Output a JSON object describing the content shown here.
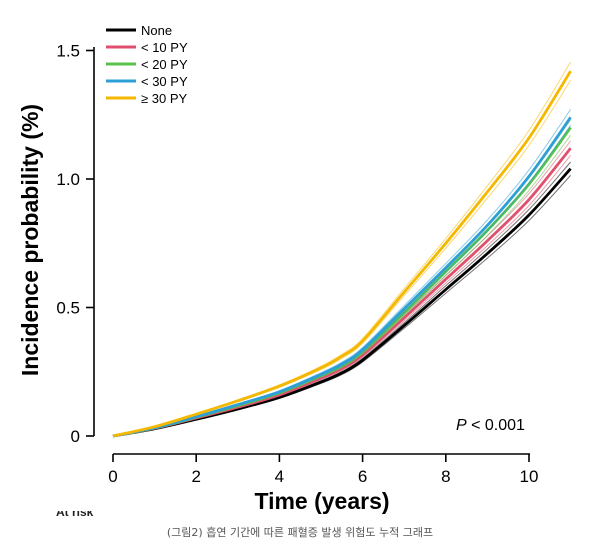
{
  "chart_data": {
    "type": "line",
    "title": "",
    "xlabel": "Time (years)",
    "ylabel": "Incidence probability (%)",
    "xlim": [
      0,
      11
    ],
    "ylim": [
      0,
      1.5
    ],
    "xticks": [
      "0",
      "2",
      "4",
      "6",
      "8",
      "10"
    ],
    "yticks": [
      "0",
      "0.5",
      "1.0",
      "1.5"
    ],
    "grid": false,
    "legend_position": "top-left",
    "confidence_bands": true,
    "annotation": {
      "prefix": "P",
      "text": " < 0.001"
    },
    "series": [
      {
        "name": "None",
        "color": "#000000",
        "x": [
          0,
          1,
          2,
          3,
          4,
          5,
          5.5,
          6,
          7,
          8,
          9,
          10,
          11
        ],
        "y": [
          0,
          0.028,
          0.065,
          0.105,
          0.15,
          0.21,
          0.245,
          0.295,
          0.43,
          0.57,
          0.71,
          0.86,
          1.04
        ]
      },
      {
        "name": "< 10 PY",
        "color": "#e0506e",
        "x": [
          0,
          1,
          2,
          3,
          4,
          5,
          5.5,
          6,
          7,
          8,
          9,
          10,
          11
        ],
        "y": [
          0,
          0.03,
          0.07,
          0.112,
          0.16,
          0.225,
          0.262,
          0.315,
          0.46,
          0.61,
          0.76,
          0.92,
          1.12
        ]
      },
      {
        "name": "< 20 PY",
        "color": "#57c24a",
        "x": [
          0,
          1,
          2,
          3,
          4,
          5,
          5.5,
          6,
          7,
          8,
          9,
          10,
          11
        ],
        "y": [
          0,
          0.031,
          0.073,
          0.118,
          0.168,
          0.235,
          0.273,
          0.328,
          0.48,
          0.64,
          0.8,
          0.98,
          1.2
        ]
      },
      {
        "name": "< 30 PY",
        "color": "#2e9fd6",
        "x": [
          0,
          1,
          2,
          3,
          4,
          5,
          5.5,
          6,
          7,
          8,
          9,
          10,
          11
        ],
        "y": [
          0,
          0.032,
          0.075,
          0.122,
          0.172,
          0.24,
          0.28,
          0.336,
          0.495,
          0.655,
          0.82,
          1.01,
          1.24
        ]
      },
      {
        "name": "≥ 30 PY",
        "color": "#f5b800",
        "x": [
          0,
          1,
          2,
          3,
          4,
          5,
          5.5,
          6,
          7,
          8,
          9,
          10,
          11
        ],
        "y": [
          0,
          0.036,
          0.085,
          0.137,
          0.194,
          0.265,
          0.31,
          0.37,
          0.56,
          0.75,
          0.95,
          1.16,
          1.42
        ]
      }
    ]
  },
  "caption": "(그림2) 흡연 기간에 따른 패혈증 발생 위험도 누적 그래프",
  "cut_off_text": "At risk"
}
